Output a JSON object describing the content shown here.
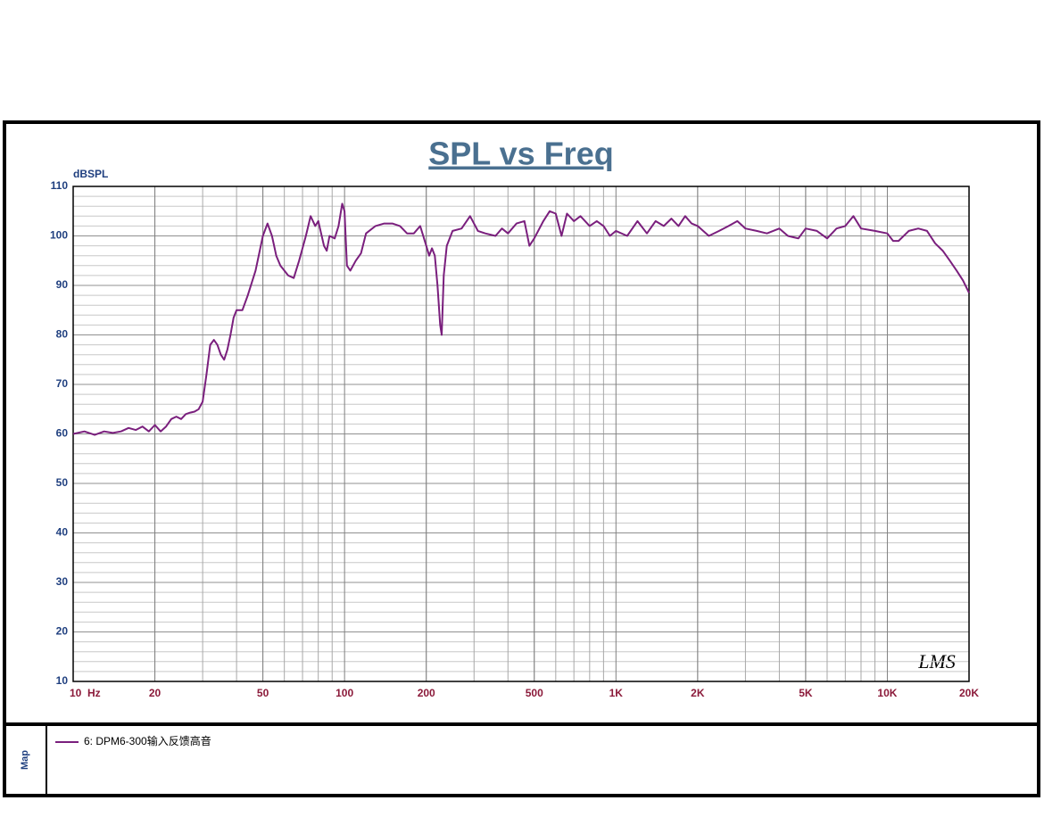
{
  "chart_data": {
    "type": "line",
    "title": "SPL vs Freq",
    "ylabel": "dBSPL",
    "legend_title": "Map",
    "logo": "LMS",
    "xscale": "log",
    "grid": true,
    "xlim": [
      10,
      20000
    ],
    "ylim": [
      10,
      110
    ],
    "xticks": [
      {
        "value": 10,
        "label": "10  Hz"
      },
      20,
      50,
      100,
      200,
      500,
      {
        "value": 1000,
        "label": "1K"
      },
      {
        "value": 2000,
        "label": "2K"
      },
      {
        "value": 5000,
        "label": "5K"
      },
      {
        "value": 10000,
        "label": "10K"
      },
      {
        "value": 20000,
        "label": "20K"
      }
    ],
    "yticks": [
      10,
      20,
      30,
      40,
      50,
      60,
      70,
      80,
      90,
      100,
      110
    ],
    "x": [
      10,
      11,
      12,
      13,
      14,
      15,
      16,
      17,
      18,
      19,
      20,
      21,
      22,
      23,
      24,
      25,
      26,
      27,
      28,
      29,
      30,
      31,
      32,
      33,
      34,
      35,
      36,
      37,
      38,
      39,
      40,
      42,
      44,
      47,
      50,
      52,
      54,
      56,
      58,
      62,
      65,
      68,
      72,
      75,
      78,
      80,
      84,
      86,
      88,
      92,
      95,
      98,
      100,
      102,
      105,
      110,
      115,
      120,
      130,
      140,
      150,
      160,
      170,
      180,
      190,
      200,
      205,
      210,
      215,
      220,
      225,
      228,
      232,
      238,
      250,
      270,
      290,
      310,
      330,
      360,
      380,
      400,
      430,
      460,
      480,
      500,
      540,
      570,
      600,
      630,
      660,
      700,
      740,
      800,
      850,
      900,
      950,
      1000,
      1100,
      1200,
      1300,
      1400,
      1500,
      1600,
      1700,
      1800,
      1900,
      2000,
      2200,
      2400,
      2600,
      2800,
      3000,
      3300,
      3600,
      4000,
      4300,
      4700,
      5000,
      5500,
      6000,
      6500,
      7000,
      7500,
      8000,
      9000,
      10000,
      10500,
      11000,
      12000,
      13000,
      14000,
      15000,
      16000,
      17000,
      18000,
      19000,
      20000
    ],
    "series": [
      {
        "name": "6: DPM6-300输入反馈高音",
        "color": "#7a1f7d",
        "values": [
          60,
          60.5,
          59.8,
          60.5,
          60.2,
          60.5,
          61.2,
          60.8,
          61.5,
          60.5,
          61.8,
          60.5,
          61.5,
          63,
          63.5,
          63,
          64,
          64.3,
          64.5,
          65,
          66.5,
          72,
          78,
          79,
          78,
          76,
          75,
          77,
          80,
          83.5,
          85,
          85,
          88,
          93,
          100,
          102.5,
          100,
          96,
          94,
          92,
          91.5,
          95,
          100,
          104,
          102,
          103,
          98,
          97,
          100,
          99.5,
          102,
          106.5,
          105,
          94,
          93,
          95,
          96.5,
          100.5,
          102,
          102.5,
          102.5,
          102,
          100.5,
          100.5,
          102,
          98,
          96,
          97.5,
          96,
          90,
          82,
          80,
          92,
          98,
          101,
          101.5,
          104,
          101,
          100.5,
          100,
          101.5,
          100.5,
          102.5,
          103,
          98,
          99.5,
          103,
          105,
          104.5,
          100,
          104.5,
          103,
          104,
          102,
          103,
          102,
          100,
          101,
          100,
          103,
          100.5,
          103,
          102,
          103.5,
          102,
          104,
          102.5,
          102,
          100,
          101,
          102,
          103,
          101.5,
          101,
          100.5,
          101.5,
          100,
          99.5,
          101.5,
          101,
          99.5,
          101.5,
          102,
          104,
          101.5,
          101,
          100.5,
          99,
          99,
          101,
          101.5,
          101,
          98.5,
          97,
          95,
          93,
          91,
          88.5
        ]
      }
    ]
  }
}
